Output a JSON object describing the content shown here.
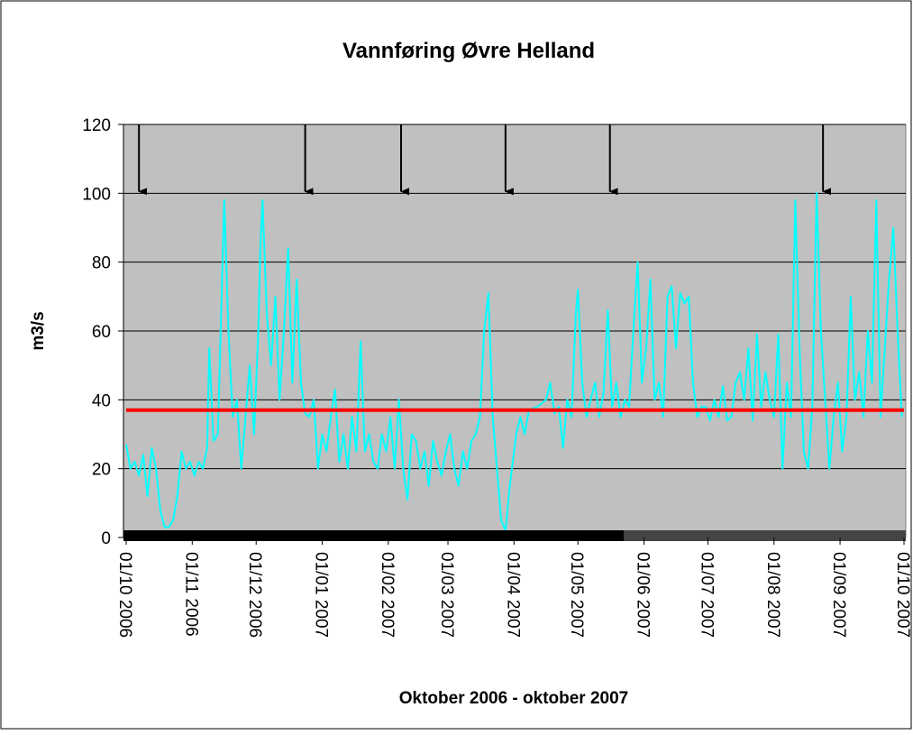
{
  "chart_data": {
    "type": "line",
    "title": "Vannføring Øvre Helland",
    "x_label": "Oktober 2006 - oktober 2007",
    "y_label": "m3/s",
    "ylim": [
      0,
      120
    ],
    "yticks": [
      0,
      20,
      40,
      60,
      80,
      100,
      120
    ],
    "grid": true,
    "xlim": [
      "2006-10-01",
      "2007-10-01"
    ],
    "xticks": [
      {
        "value": "2006-10-01",
        "label": "01/10 2006"
      },
      {
        "value": "2006-11-01",
        "label": "01/11 2006"
      },
      {
        "value": "2006-12-01",
        "label": "01/12 2006"
      },
      {
        "value": "2007-01-01",
        "label": "01/01 2007"
      },
      {
        "value": "2007-02-01",
        "label": "01/02 2007"
      },
      {
        "value": "2007-03-01",
        "label": "01/03 2007"
      },
      {
        "value": "2007-04-01",
        "label": "01/04 2007"
      },
      {
        "value": "2007-05-01",
        "label": "01/05 2007"
      },
      {
        "value": "2007-06-01",
        "label": "01/06 2007"
      },
      {
        "value": "2007-07-01",
        "label": "01/07 2007"
      },
      {
        "value": "2007-08-01",
        "label": "01/08 2007"
      },
      {
        "value": "2007-09-01",
        "label": "01/09 2007"
      },
      {
        "value": "2007-10-01",
        "label": "01/10 2007"
      }
    ],
    "arrows": [
      "2006-10-07",
      "2006-12-24",
      "2007-02-07",
      "2007-03-28",
      "2007-05-16",
      "2007-08-24"
    ],
    "series": [
      {
        "color": "#00ffff",
        "width": 2,
        "x": [
          "2006-10-01",
          "2006-10-03",
          "2006-10-05",
          "2006-10-07",
          "2006-10-09",
          "2006-10-11",
          "2006-10-13",
          "2006-10-15",
          "2006-10-17",
          "2006-10-19",
          "2006-10-21",
          "2006-10-23",
          "2006-10-25",
          "2006-10-27",
          "2006-10-29",
          "2006-10-31",
          "2006-11-02",
          "2006-11-04",
          "2006-11-06",
          "2006-11-08",
          "2006-11-09",
          "2006-11-11",
          "2006-11-13",
          "2006-11-15",
          "2006-11-16",
          "2006-11-18",
          "2006-11-20",
          "2006-11-22",
          "2006-11-24",
          "2006-11-26",
          "2006-11-28",
          "2006-11-30",
          "2006-12-02",
          "2006-12-03",
          "2006-12-04",
          "2006-12-06",
          "2006-12-08",
          "2006-12-10",
          "2006-12-12",
          "2006-12-14",
          "2006-12-16",
          "2006-12-18",
          "2006-12-20",
          "2006-12-22",
          "2006-12-24",
          "2006-12-26",
          "2006-12-28",
          "2006-12-30",
          "2007-01-01",
          "2007-01-03",
          "2007-01-05",
          "2007-01-07",
          "2007-01-09",
          "2007-01-11",
          "2007-01-13",
          "2007-01-15",
          "2007-01-17",
          "2007-01-19",
          "2007-01-21",
          "2007-01-23",
          "2007-01-25",
          "2007-01-27",
          "2007-01-29",
          "2007-01-31",
          "2007-02-02",
          "2007-02-04",
          "2007-02-06",
          "2007-02-08",
          "2007-02-10",
          "2007-02-12",
          "2007-02-14",
          "2007-02-16",
          "2007-02-18",
          "2007-02-20",
          "2007-02-22",
          "2007-02-24",
          "2007-02-26",
          "2007-02-28",
          "2007-03-02",
          "2007-03-04",
          "2007-03-06",
          "2007-03-08",
          "2007-03-10",
          "2007-03-12",
          "2007-03-14",
          "2007-03-16",
          "2007-03-18",
          "2007-03-20",
          "2007-03-22",
          "2007-03-24",
          "2007-03-26",
          "2007-03-28",
          "2007-03-30",
          "2007-03-31",
          "2007-04-02",
          "2007-04-04",
          "2007-04-06",
          "2007-04-08",
          "2007-04-12",
          "2007-04-16",
          "2007-04-18",
          "2007-04-20",
          "2007-04-22",
          "2007-04-24",
          "2007-04-26",
          "2007-04-28",
          "2007-04-30",
          "2007-05-01",
          "2007-05-03",
          "2007-05-05",
          "2007-05-07",
          "2007-05-09",
          "2007-05-11",
          "2007-05-13",
          "2007-05-15",
          "2007-05-17",
          "2007-05-19",
          "2007-05-21",
          "2007-05-23",
          "2007-05-25",
          "2007-05-27",
          "2007-05-29",
          "2007-05-31",
          "2007-06-02",
          "2007-06-04",
          "2007-06-06",
          "2007-06-08",
          "2007-06-10",
          "2007-06-12",
          "2007-06-14",
          "2007-06-16",
          "2007-06-18",
          "2007-06-20",
          "2007-06-22",
          "2007-06-24",
          "2007-06-26",
          "2007-06-28",
          "2007-06-30",
          "2007-07-02",
          "2007-07-04",
          "2007-07-06",
          "2007-07-08",
          "2007-07-10",
          "2007-07-12",
          "2007-07-14",
          "2007-07-16",
          "2007-07-18",
          "2007-07-20",
          "2007-07-22",
          "2007-07-24",
          "2007-07-26",
          "2007-07-28",
          "2007-07-30",
          "2007-08-01",
          "2007-08-03",
          "2007-08-05",
          "2007-08-07",
          "2007-08-09",
          "2007-08-11",
          "2007-08-13",
          "2007-08-15",
          "2007-08-17",
          "2007-08-19",
          "2007-08-21",
          "2007-08-23",
          "2007-08-25",
          "2007-08-27",
          "2007-08-29",
          "2007-08-31",
          "2007-09-02",
          "2007-09-04",
          "2007-09-06",
          "2007-09-08",
          "2007-09-10",
          "2007-09-12",
          "2007-09-14",
          "2007-09-16",
          "2007-09-18",
          "2007-09-20",
          "2007-09-22",
          "2007-09-24",
          "2007-09-26",
          "2007-09-28",
          "2007-09-30"
        ],
        "values": [
          27,
          20,
          22,
          18,
          24,
          12,
          26,
          20,
          8,
          3,
          3,
          5,
          12,
          25,
          20,
          22,
          18,
          22,
          20,
          26,
          55,
          28,
          30,
          75,
          98,
          60,
          35,
          40,
          20,
          35,
          50,
          30,
          60,
          85,
          98,
          65,
          50,
          70,
          40,
          60,
          84,
          45,
          75,
          45,
          36,
          35,
          40,
          20,
          30,
          25,
          35,
          43,
          22,
          30,
          20,
          35,
          25,
          57,
          25,
          30,
          22,
          20,
          30,
          25,
          35,
          20,
          40,
          20,
          11,
          30,
          28,
          20,
          25,
          15,
          28,
          22,
          18,
          25,
          30,
          20,
          15,
          25,
          20,
          28,
          30,
          35,
          60,
          71,
          35,
          20,
          5,
          2,
          15,
          20,
          30,
          35,
          30,
          37,
          38,
          40,
          45,
          36,
          38,
          26,
          40,
          35,
          65,
          72,
          45,
          35,
          40,
          45,
          35,
          42,
          66,
          38,
          45,
          35,
          40,
          38,
          60,
          80,
          45,
          55,
          75,
          40,
          45,
          35,
          70,
          73,
          55,
          71,
          68,
          70,
          45,
          35,
          38,
          38,
          34,
          40,
          35,
          44,
          34,
          35,
          45,
          48,
          40,
          55,
          34,
          59,
          38,
          48,
          40,
          35,
          59,
          20,
          45,
          35,
          98,
          55,
          25,
          20,
          38,
          100,
          60,
          40,
          20,
          35,
          45,
          25,
          35,
          70,
          40,
          48,
          35,
          60,
          45,
          98,
          35,
          55,
          75,
          90,
          60,
          35
        ]
      },
      {
        "color": "#ff0000",
        "width": 4,
        "x": [
          "2006-10-01",
          "2007-10-01"
        ],
        "values": [
          37,
          37
        ]
      }
    ]
  }
}
